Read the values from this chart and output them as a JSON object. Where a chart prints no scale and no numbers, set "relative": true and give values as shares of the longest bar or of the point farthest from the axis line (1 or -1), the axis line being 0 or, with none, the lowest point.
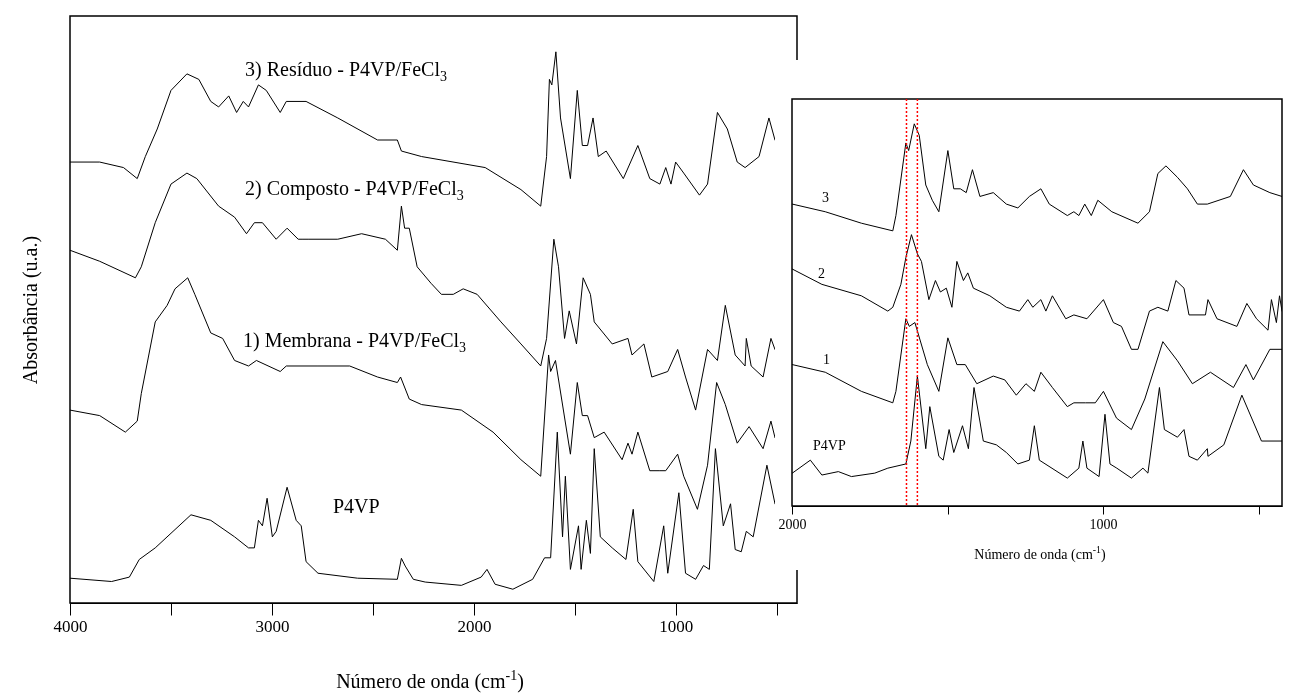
{
  "chart_data": [
    {
      "type": "line",
      "xlabel": "Número de onda (cm$^{-1}$)",
      "ylabel": "Absorbância (u.a.)",
      "relative": true,
      "xlim": [
        4000,
        400
      ],
      "xticks": [
        4000,
        {
          "value": 3500,
          "label": null
        },
        3000,
        {
          "value": 2500,
          "label": null
        },
        2000,
        {
          "value": 1500,
          "label": null
        },
        1000,
        {
          "value": 500,
          "label": null
        }
      ],
      "series": [
        {
          "name": "3) Resíduo - P4VP/FeCl$_{3}$",
          "color": "#000000",
          "x": [
            4000,
            3853,
            3735,
            3667,
            3627,
            3568,
            3500,
            3421,
            3362,
            3303,
            3264,
            3214,
            3175,
            3142,
            3116,
            3067,
            3028,
            2959,
            2929,
            2831,
            2674,
            2477,
            2379,
            2359,
            2259,
            1944,
            1767,
            1669,
            1640,
            1626,
            1614,
            1594,
            1571,
            1522,
            1488,
            1463,
            1437,
            1410,
            1384,
            1345,
            1260,
            1188,
            1129,
            1079,
            1050,
            1024,
            1001,
            961,
            883,
            843,
            794,
            745,
            696,
            657,
            588,
            539,
            509
          ],
          "values": [
            0.8,
            0.8,
            0.79,
            0.77,
            0.81,
            0.86,
            0.93,
            0.96,
            0.95,
            0.91,
            0.9,
            0.92,
            0.89,
            0.91,
            0.9,
            0.94,
            0.93,
            0.89,
            0.91,
            0.91,
            0.88,
            0.84,
            0.84,
            0.82,
            0.81,
            0.79,
            0.75,
            0.72,
            0.81,
            0.95,
            0.94,
            1.0,
            0.88,
            0.77,
            0.93,
            0.83,
            0.83,
            0.88,
            0.81,
            0.82,
            0.77,
            0.83,
            0.77,
            0.76,
            0.79,
            0.76,
            0.8,
            0.78,
            0.74,
            0.76,
            0.89,
            0.86,
            0.8,
            0.79,
            0.81,
            0.88,
            0.84
          ]
        },
        {
          "name": "2) Composto - P4VP/FeCl$_{3}$",
          "color": "#000000",
          "x": [
            4000,
            3853,
            3676,
            3647,
            3578,
            3500,
            3421,
            3372,
            3264,
            3185,
            3126,
            3087,
            3047,
            2979,
            2925,
            2870,
            2851,
            2821,
            2674,
            2556,
            2438,
            2379,
            2359,
            2343,
            2320,
            2281,
            2212,
            2161,
            2102,
            2053,
            1984,
            1866,
            1767,
            1669,
            1640,
            1604,
            1581,
            1551,
            1528,
            1492,
            1459,
            1423,
            1404,
            1315,
            1237,
            1217,
            1158,
            1119,
            1040,
            991,
            952,
            902,
            843,
            794,
            755,
            706,
            657,
            651,
            627,
            568,
            529,
            509
          ],
          "values": [
            0.64,
            0.62,
            0.59,
            0.61,
            0.69,
            0.76,
            0.78,
            0.77,
            0.72,
            0.7,
            0.67,
            0.69,
            0.69,
            0.66,
            0.68,
            0.66,
            0.66,
            0.66,
            0.66,
            0.67,
            0.66,
            0.64,
            0.72,
            0.68,
            0.68,
            0.61,
            0.58,
            0.56,
            0.56,
            0.57,
            0.56,
            0.51,
            0.47,
            0.43,
            0.48,
            0.66,
            0.61,
            0.48,
            0.53,
            0.47,
            0.59,
            0.56,
            0.51,
            0.47,
            0.48,
            0.45,
            0.47,
            0.41,
            0.42,
            0.46,
            0.41,
            0.35,
            0.46,
            0.44,
            0.54,
            0.45,
            0.43,
            0.48,
            0.43,
            0.41,
            0.48,
            0.46
          ]
        },
        {
          "name": "1) Membrana - P4VP/FeCl$_{3}$",
          "color": "#000000",
          "x": [
            4000,
            3853,
            3726,
            3667,
            3647,
            3578,
            3519,
            3480,
            3417,
            3382,
            3303,
            3244,
            3185,
            3116,
            3077,
            2959,
            2929,
            2772,
            2615,
            2477,
            2379,
            2363,
            2320,
            2259,
            2062,
            1905,
            1767,
            1669,
            1630,
            1620,
            1596,
            1522,
            1488,
            1463,
            1437,
            1404,
            1355,
            1266,
            1237,
            1217,
            1188,
            1129,
            1079,
            1050,
            991,
            961,
            893,
            843,
            798,
            755,
            696,
            637,
            568,
            529,
            509
          ],
          "values": [
            0.35,
            0.34,
            0.31,
            0.33,
            0.38,
            0.51,
            0.54,
            0.57,
            0.59,
            0.56,
            0.49,
            0.48,
            0.44,
            0.43,
            0.44,
            0.42,
            0.43,
            0.43,
            0.43,
            0.41,
            0.4,
            0.41,
            0.37,
            0.36,
            0.35,
            0.31,
            0.26,
            0.23,
            0.45,
            0.42,
            0.44,
            0.27,
            0.4,
            0.34,
            0.34,
            0.3,
            0.31,
            0.26,
            0.29,
            0.27,
            0.31,
            0.24,
            0.24,
            0.24,
            0.27,
            0.23,
            0.17,
            0.25,
            0.4,
            0.36,
            0.29,
            0.32,
            0.28,
            0.33,
            0.3
          ]
        },
        {
          "name": "P4VP",
          "color": "#000000",
          "x": [
            4000,
            3794,
            3706,
            3657,
            3578,
            3401,
            3303,
            3185,
            3116,
            3087,
            3067,
            3047,
            3024,
            2998,
            2979,
            2925,
            2880,
            2855,
            2831,
            2772,
            2576,
            2379,
            2359,
            2340,
            2300,
            2241,
            2062,
            1964,
            1935,
            1895,
            1807,
            1709,
            1650,
            1620,
            1587,
            1561,
            1547,
            1522,
            1482,
            1469,
            1443,
            1423,
            1404,
            1374,
            1315,
            1247,
            1211,
            1188,
            1109,
            1060,
            1040,
            985,
            952,
            902,
            863,
            834,
            804,
            765,
            729,
            706,
            676,
            651,
            617,
            549,
            509
          ],
          "values": [
            0.045,
            0.039,
            0.047,
            0.079,
            0.1,
            0.16,
            0.15,
            0.12,
            0.1,
            0.1,
            0.15,
            0.14,
            0.19,
            0.12,
            0.13,
            0.21,
            0.15,
            0.14,
            0.075,
            0.054,
            0.045,
            0.043,
            0.081,
            0.067,
            0.043,
            0.038,
            0.032,
            0.047,
            0.061,
            0.034,
            0.025,
            0.043,
            0.082,
            0.082,
            0.31,
            0.12,
            0.23,
            0.061,
            0.14,
            0.061,
            0.15,
            0.09,
            0.28,
            0.12,
            0.1,
            0.079,
            0.17,
            0.075,
            0.039,
            0.14,
            0.054,
            0.2,
            0.054,
            0.043,
            0.068,
            0.061,
            0.28,
            0.14,
            0.18,
            0.097,
            0.093,
            0.13,
            0.12,
            0.25,
            0.18
          ]
        }
      ]
    },
    {
      "type": "line",
      "xlabel": "Número de onda (cm$^{-1}$)",
      "relative": true,
      "xlim": [
        2000,
        425
      ],
      "xticks": [
        2000,
        {
          "value": 1500,
          "label": null
        },
        1000,
        {
          "value": 500,
          "label": null
        }
      ],
      "ref_lines": [
        {
          "axis": "x",
          "value": 1632,
          "color": "#ff0000",
          "line_style": "dotted"
        },
        {
          "axis": "x",
          "value": 1597,
          "color": "#ff0000",
          "line_style": "dotted"
        }
      ],
      "series": [
        {
          "name": "3",
          "color": "#000000",
          "x": [
            1999,
            1893,
            1777,
            1676,
            1666,
            1634,
            1625,
            1607,
            1591,
            1570,
            1549,
            1528,
            1499,
            1480,
            1459,
            1440,
            1420,
            1396,
            1353,
            1311,
            1274,
            1237,
            1200,
            1173,
            1115,
            1094,
            1078,
            1059,
            1038,
            1017,
            972,
            888,
            851,
            824,
            798,
            761,
            729,
            697,
            665,
            591,
            549,
            517,
            464,
            425
          ],
          "values": [
            0.79,
            0.77,
            0.74,
            0.72,
            0.76,
            0.95,
            0.93,
            1.0,
            0.97,
            0.84,
            0.8,
            0.77,
            0.93,
            0.83,
            0.83,
            0.82,
            0.88,
            0.81,
            0.82,
            0.79,
            0.78,
            0.81,
            0.83,
            0.79,
            0.76,
            0.77,
            0.76,
            0.79,
            0.76,
            0.8,
            0.77,
            0.74,
            0.77,
            0.87,
            0.89,
            0.86,
            0.83,
            0.79,
            0.79,
            0.81,
            0.88,
            0.84,
            0.82,
            0.81
          ]
        },
        {
          "name": "2",
          "color": "#000000",
          "x": [
            1999,
            1904,
            1777,
            1692,
            1676,
            1650,
            1634,
            1616,
            1597,
            1584,
            1560,
            1539,
            1523,
            1504,
            1486,
            1470,
            1449,
            1435,
            1417,
            1364,
            1311,
            1269,
            1242,
            1226,
            1200,
            1184,
            1163,
            1120,
            1094,
            1052,
            999,
            967,
            941,
            909,
            888,
            851,
            824,
            792,
            766,
            740,
            724,
            671,
            663,
            634,
            570,
            538,
            507,
            470,
            459,
            443,
            433,
            425
          ],
          "values": [
            0.62,
            0.58,
            0.55,
            0.51,
            0.52,
            0.58,
            0.65,
            0.71,
            0.66,
            0.64,
            0.54,
            0.59,
            0.56,
            0.57,
            0.52,
            0.64,
            0.59,
            0.61,
            0.57,
            0.55,
            0.52,
            0.51,
            0.54,
            0.52,
            0.54,
            0.51,
            0.55,
            0.49,
            0.5,
            0.49,
            0.54,
            0.48,
            0.47,
            0.41,
            0.41,
            0.51,
            0.52,
            0.51,
            0.59,
            0.57,
            0.5,
            0.5,
            0.54,
            0.49,
            0.47,
            0.53,
            0.49,
            0.46,
            0.54,
            0.48,
            0.55,
            0.51
          ]
        },
        {
          "name": "1",
          "color": "#000000",
          "x": [
            1999,
            1893,
            1777,
            1676,
            1666,
            1634,
            1623,
            1605,
            1565,
            1528,
            1499,
            1470,
            1443,
            1406,
            1353,
            1316,
            1279,
            1248,
            1221,
            1200,
            1163,
            1115,
            1094,
            1057,
            1025,
            999,
            957,
            909,
            866,
            808,
            761,
            713,
            655,
            581,
            541,
            517,
            464,
            425
          ],
          "values": [
            0.37,
            0.35,
            0.3,
            0.27,
            0.3,
            0.49,
            0.47,
            0.48,
            0.37,
            0.3,
            0.44,
            0.37,
            0.37,
            0.32,
            0.34,
            0.33,
            0.29,
            0.32,
            0.3,
            0.35,
            0.31,
            0.26,
            0.27,
            0.27,
            0.27,
            0.3,
            0.23,
            0.2,
            0.28,
            0.43,
            0.38,
            0.32,
            0.35,
            0.31,
            0.37,
            0.33,
            0.41,
            0.41
          ]
        },
        {
          "name": "P4VP",
          "color": "#000000",
          "x": [
            1999,
            1941,
            1904,
            1851,
            1809,
            1734,
            1692,
            1634,
            1618,
            1597,
            1570,
            1557,
            1528,
            1514,
            1495,
            1480,
            1452,
            1433,
            1415,
            1385,
            1343,
            1311,
            1274,
            1237,
            1221,
            1205,
            1115,
            1078,
            1065,
            1052,
            1013,
            994,
            978,
            956,
            909,
            872,
            856,
            819,
            803,
            761,
            740,
            724,
            697,
            665,
            663,
            612,
            554,
            491,
            425
          ],
          "values": [
            0.086,
            0.12,
            0.081,
            0.09,
            0.077,
            0.086,
            0.099,
            0.11,
            0.17,
            0.34,
            0.15,
            0.26,
            0.13,
            0.12,
            0.2,
            0.14,
            0.21,
            0.15,
            0.31,
            0.17,
            0.16,
            0.14,
            0.11,
            0.12,
            0.21,
            0.12,
            0.073,
            0.099,
            0.17,
            0.099,
            0.077,
            0.24,
            0.11,
            0.099,
            0.073,
            0.099,
            0.086,
            0.31,
            0.2,
            0.18,
            0.2,
            0.13,
            0.12,
            0.15,
            0.13,
            0.16,
            0.29,
            0.17,
            0.17
          ]
        }
      ]
    }
  ]
}
